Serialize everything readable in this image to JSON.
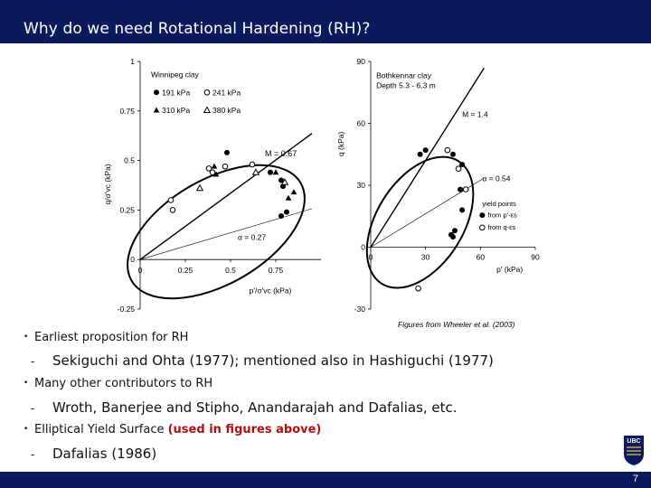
{
  "slide": {
    "title": "Why do we need Rotational Hardening (RH)?",
    "page_number": "7",
    "caption": "Figures from Wheeler et al. (2003)",
    "bullets": [
      {
        "text": "Earliest proposition for RH",
        "sub": "Sekiguchi and Ohta (1977); mentioned also in Hashiguchi (1977)"
      },
      {
        "text": "Many other contributors to RH",
        "sub": "Wroth, Banerjee and Stipho, Anandarajah and Dafalias, etc."
      },
      {
        "text": "Elliptical Yield Surface ",
        "highlight": "(used in figures above)",
        "sub": "Dafalias (1986)"
      }
    ],
    "logo_text": "UBC",
    "colors": {
      "bar": "#0a1a5c",
      "highlight": "#b01010"
    }
  },
  "chart_data": [
    {
      "type": "scatter",
      "title": "Winnipeg clay",
      "xlabel": "p'/σ'vc (kPa)",
      "ylabel": "q/σ'vc (kPa)",
      "xlim": [
        0,
        1
      ],
      "ylim": [
        -0.25,
        1
      ],
      "xticks": [
        "0",
        "0.25",
        "0.5",
        "0.75"
      ],
      "yticks": [
        "1",
        "0.75",
        "0.5",
        "0.25",
        "0",
        "-0.25"
      ],
      "legend": [
        "191 kPa",
        "241 kPa",
        "310 kPa",
        "380 kPa"
      ],
      "annotations": [
        "M = 0.67",
        "α = 0.27"
      ],
      "series": [
        {
          "name": "191 kPa",
          "marker": "filled-circle",
          "points": [
            [
              0.48,
              0.54
            ],
            [
              0.72,
              0.44
            ],
            [
              0.78,
              0.4
            ],
            [
              0.79,
              0.37
            ],
            [
              0.81,
              0.24
            ],
            [
              0.78,
              0.22
            ]
          ]
        },
        {
          "name": "241 kPa",
          "marker": "open-circle",
          "points": [
            [
              0.17,
              0.3
            ],
            [
              0.18,
              0.25
            ],
            [
              0.38,
              0.46
            ],
            [
              0.4,
              0.44
            ],
            [
              0.47,
              0.47
            ],
            [
              0.62,
              0.48
            ]
          ]
        },
        {
          "name": "310 kPa",
          "marker": "filled-triangle",
          "points": [
            [
              0.41,
              0.47
            ],
            [
              0.42,
              0.43
            ],
            [
              0.75,
              0.44
            ],
            [
              0.85,
              0.34
            ],
            [
              0.82,
              0.31
            ]
          ]
        },
        {
          "name": "380 kPa",
          "marker": "open-triangle",
          "points": [
            [
              0.33,
              0.36
            ],
            [
              0.8,
              0.39
            ],
            [
              0.64,
              0.44
            ]
          ]
        }
      ],
      "lines": [
        {
          "label": "M = 0.67",
          "slope": 0.67
        },
        {
          "label": "α = 0.27",
          "slope": 0.27
        }
      ]
    },
    {
      "type": "scatter",
      "title": "Bothkennar clay",
      "subtitle": "Depth 5.3 - 6.3 m",
      "xlabel": "p' (kPa)",
      "ylabel": "q (kPa)",
      "xlim": [
        0,
        90
      ],
      "ylim": [
        -30,
        90
      ],
      "xticks": [
        "0",
        "30",
        "60",
        "90"
      ],
      "yticks": [
        "90",
        "60",
        "30",
        "0",
        "-30"
      ],
      "legend": [
        "yield points",
        "from p'-εs",
        "from q-εs"
      ],
      "annotations": [
        "M = 1.4",
        "α = 0.54"
      ],
      "series": [
        {
          "name": "from p'-εs",
          "marker": "filled-circle",
          "points": [
            [
              27,
              45
            ],
            [
              30,
              47
            ],
            [
              45,
              45
            ],
            [
              50,
              40
            ],
            [
              49,
              28
            ],
            [
              50,
              18
            ],
            [
              46,
              8
            ],
            [
              44,
              6
            ],
            [
              45,
              5
            ]
          ]
        },
        {
          "name": "from q-εs",
          "marker": "open-circle",
          "points": [
            [
              42,
              47
            ],
            [
              48,
              38
            ],
            [
              52,
              28
            ],
            [
              26,
              -20
            ]
          ]
        }
      ],
      "lines": [
        {
          "label": "M = 1.4",
          "slope": 1.4
        },
        {
          "label": "α = 0.54",
          "slope": 0.54
        }
      ]
    }
  ]
}
